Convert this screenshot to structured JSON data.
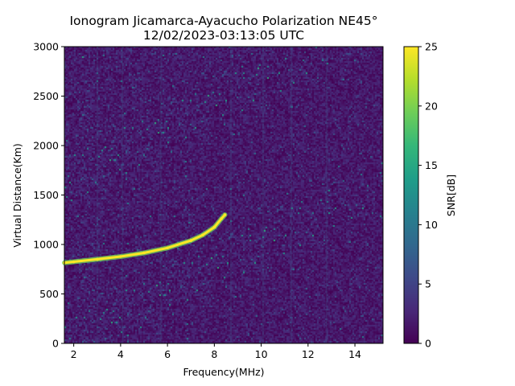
{
  "chart_data": {
    "type": "heatmap",
    "title": "Ionogram Jicamarca-Ayacucho Polarization NE45°",
    "subtitle": "12/02/2023-03:13:05 UTC",
    "xlabel": "Frequency(MHz)",
    "ylabel": "Virtual Distance(Km)",
    "xlim": [
      1.6,
      15.2
    ],
    "ylim": [
      0,
      3000
    ],
    "x_ticks": [
      2,
      4,
      6,
      8,
      10,
      12,
      14
    ],
    "y_ticks": [
      0,
      500,
      1000,
      1500,
      2000,
      2500,
      3000
    ],
    "colorbar": {
      "label": "SNR[dB]",
      "range": [
        0,
        25
      ],
      "ticks": [
        0,
        5,
        10,
        15,
        20,
        25
      ],
      "colormap": "viridis"
    },
    "echo_trace": {
      "description_level": "SNR≈25 dB",
      "points": [
        {
          "x": 1.6,
          "y": 815
        },
        {
          "x": 2.0,
          "y": 825
        },
        {
          "x": 3.0,
          "y": 850
        },
        {
          "x": 4.0,
          "y": 878
        },
        {
          "x": 5.0,
          "y": 915
        },
        {
          "x": 6.0,
          "y": 965
        },
        {
          "x": 7.0,
          "y": 1040
        },
        {
          "x": 7.5,
          "y": 1095
        },
        {
          "x": 8.0,
          "y": 1175
        },
        {
          "x": 8.3,
          "y": 1260
        },
        {
          "x": 8.45,
          "y": 1300
        }
      ]
    },
    "background_level": "SNR≈0–4 dB noise"
  }
}
